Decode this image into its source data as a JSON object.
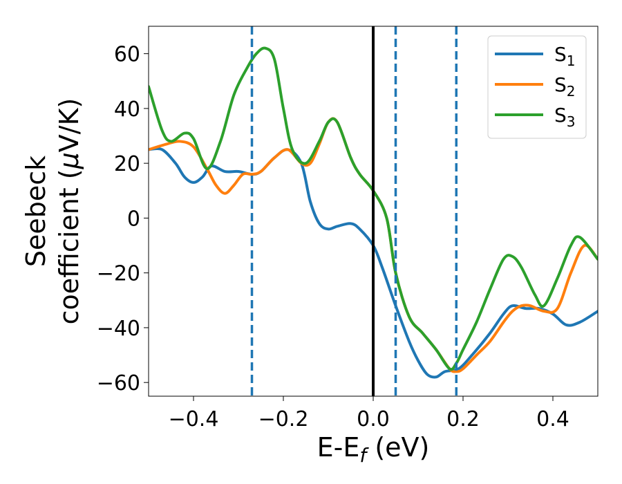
{
  "chart_data": {
    "type": "line",
    "title": "",
    "xlabel": "E-E",
    "xlabel_sub": "f",
    "xlabel_unit": " (eV)",
    "ylabel_line1": "Seebeck",
    "ylabel_line2": "coefficient  (",
    "ylabel_mu": "μ",
    "ylabel_unit": "V/K)",
    "xlim": [
      -0.5,
      0.5
    ],
    "ylim": [
      -65,
      70
    ],
    "xticks": [
      -0.4,
      -0.2,
      0.0,
      0.2,
      0.4
    ],
    "xtick_labels": [
      "−0.4",
      "−0.2",
      "0.0",
      "0.2",
      "0.4"
    ],
    "yticks": [
      -60,
      -40,
      -20,
      0,
      20,
      40,
      60
    ],
    "ytick_labels": [
      "−60",
      "−40",
      "−20",
      "0",
      "20",
      "40",
      "60"
    ],
    "grid": false,
    "legend_position": "top-right",
    "vline_solid": {
      "x": 0.0,
      "color": "#000000"
    },
    "vlines_dashed": {
      "x": [
        -0.27,
        0.05,
        0.185
      ],
      "color": "#1f77b4"
    },
    "series": [
      {
        "name": "S",
        "sub": "1",
        "color": "#1f77b4",
        "x": [
          -0.5,
          -0.47,
          -0.44,
          -0.42,
          -0.4,
          -0.38,
          -0.36,
          -0.33,
          -0.3,
          -0.27,
          -0.25,
          -0.22,
          -0.19,
          -0.16,
          -0.14,
          -0.12,
          -0.1,
          -0.08,
          -0.05,
          -0.03,
          0.0,
          0.02,
          0.05,
          0.08,
          0.1,
          0.12,
          0.14,
          0.16,
          0.19,
          0.22,
          0.26,
          0.29,
          0.31,
          0.34,
          0.37,
          0.4,
          0.43,
          0.46,
          0.5
        ],
        "y": [
          25,
          25,
          20,
          15,
          13,
          15,
          19,
          17,
          17,
          16,
          17,
          22,
          25,
          20,
          6,
          -2,
          -4,
          -3,
          -2,
          -4,
          -10,
          -18,
          -32,
          -45,
          -52,
          -57,
          -58,
          -56,
          -55,
          -50,
          -42,
          -35,
          -32,
          -33,
          -33,
          -35,
          -39,
          -38,
          -34
        ]
      },
      {
        "name": "S",
        "sub": "2",
        "color": "#ff7f0e",
        "x": [
          -0.5,
          -0.46,
          -0.43,
          -0.4,
          -0.37,
          -0.35,
          -0.33,
          -0.31,
          -0.29,
          -0.27,
          -0.25,
          -0.22,
          -0.19,
          -0.16,
          -0.14,
          -0.12,
          -0.1,
          -0.08,
          -0.05,
          -0.03,
          0.0,
          0.03,
          0.05,
          0.08,
          0.11,
          0.14,
          0.17,
          0.185,
          0.2,
          0.23,
          0.26,
          0.29,
          0.31,
          0.33,
          0.35,
          0.38,
          0.41,
          0.44,
          0.47,
          0.5
        ],
        "y": [
          25,
          27,
          28,
          26,
          18,
          12,
          9,
          12,
          16,
          16,
          17,
          22,
          25,
          20,
          20,
          27,
          35,
          35,
          22,
          16,
          10,
          0,
          -20,
          -36,
          -42,
          -48,
          -55,
          -56,
          -55,
          -50,
          -45,
          -38,
          -34,
          -32,
          -32,
          -34,
          -33,
          -20,
          -10,
          -15
        ]
      },
      {
        "name": "S",
        "sub": "3",
        "color": "#2ca02c",
        "x": [
          -0.5,
          -0.47,
          -0.45,
          -0.42,
          -0.4,
          -0.37,
          -0.34,
          -0.31,
          -0.28,
          -0.26,
          -0.24,
          -0.22,
          -0.2,
          -0.18,
          -0.15,
          -0.12,
          -0.1,
          -0.08,
          -0.05,
          -0.03,
          0.0,
          0.03,
          0.05,
          0.08,
          0.11,
          0.14,
          0.17,
          0.185,
          0.2,
          0.23,
          0.26,
          0.29,
          0.31,
          0.33,
          0.36,
          0.38,
          0.41,
          0.44,
          0.46,
          0.5
        ],
        "y": [
          48,
          32,
          28,
          31,
          29,
          18,
          28,
          45,
          55,
          60,
          62,
          58,
          40,
          25,
          20,
          28,
          35,
          35,
          22,
          16,
          10,
          0,
          -20,
          -36,
          -42,
          -48,
          -55,
          -53,
          -48,
          -38,
          -26,
          -15,
          -14,
          -18,
          -28,
          -32,
          -22,
          -10,
          -7,
          -15
        ]
      }
    ]
  }
}
